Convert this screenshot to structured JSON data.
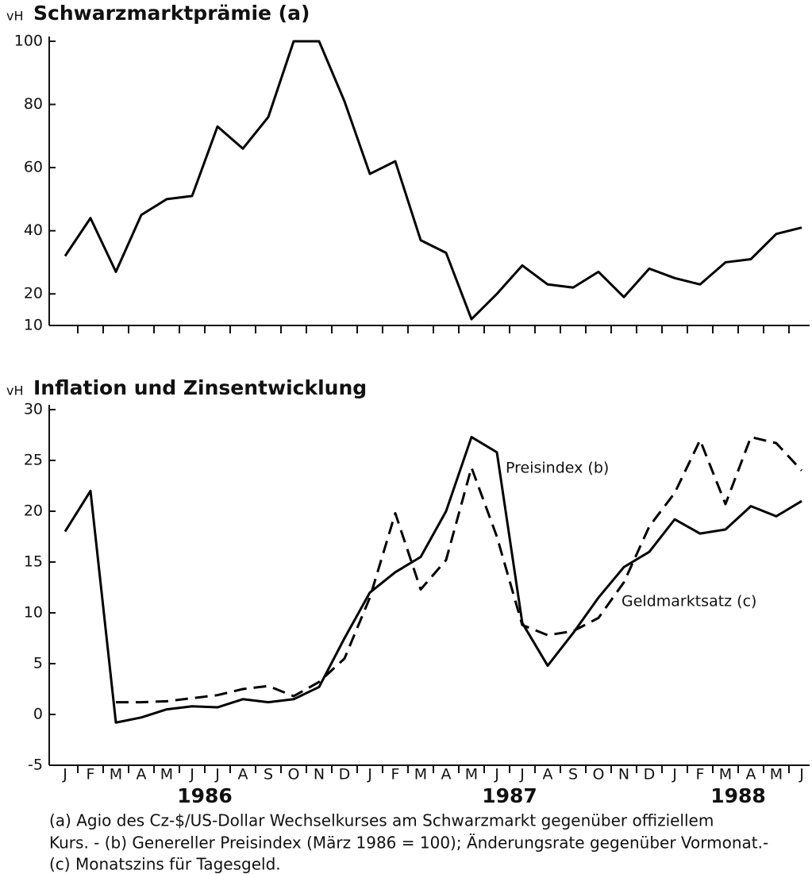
{
  "chart_data": [
    {
      "type": "line",
      "title": "Schwarzmarktprämie (a)",
      "y_label": "vH",
      "color": "#000000",
      "ylim": [
        10,
        100
      ],
      "yticks": [
        10,
        20,
        40,
        60,
        80,
        100
      ],
      "values": [
        32,
        44,
        27,
        45,
        50,
        51,
        73,
        66,
        76,
        100,
        100,
        81,
        58,
        62,
        37,
        33,
        12,
        20,
        29,
        23,
        22,
        27,
        19,
        28,
        25,
        23,
        30,
        31,
        39,
        41
      ]
    },
    {
      "type": "line",
      "title": "Inflation und Zinsentwicklung",
      "y_label": "vH",
      "ylim": [
        -5,
        30
      ],
      "yticks": [
        -5,
        0,
        5,
        10,
        15,
        20,
        25,
        30
      ],
      "categories": [
        "J",
        "F",
        "M",
        "A",
        "M",
        "J",
        "J",
        "A",
        "S",
        "O",
        "N",
        "D",
        "J",
        "F",
        "M",
        "A",
        "M",
        "J",
        "J",
        "A",
        "S",
        "O",
        "N",
        "D",
        "J",
        "F",
        "M",
        "A",
        "M",
        "J"
      ],
      "years": [
        "1986",
        "1987",
        "1988"
      ],
      "series": [
        {
          "name": "Preisindex (b)",
          "color": "#000000",
          "dash": false,
          "values": [
            18,
            22,
            -0.8,
            -0.3,
            0.5,
            0.8,
            0.7,
            1.5,
            1.2,
            1.5,
            2.7,
            7.5,
            12,
            14,
            15.5,
            20,
            27.3,
            25.8,
            9,
            4.8,
            8,
            11.5,
            14.5,
            16,
            19.2,
            17.8,
            18.2,
            20.5,
            19.5,
            21
          ]
        },
        {
          "name": "Geldmarktsatz (c)",
          "color": "#000000",
          "dash": true,
          "values": [
            null,
            null,
            1.2,
            1.2,
            1.3,
            1.6,
            1.9,
            2.5,
            2.8,
            1.8,
            3.2,
            5.5,
            11.5,
            19.8,
            12.3,
            15.2,
            24.3,
            17.5,
            8.8,
            7.8,
            8.2,
            9.5,
            13,
            18.5,
            21.8,
            27,
            20.7,
            27.3,
            26.7,
            24
          ]
        }
      ]
    }
  ],
  "footnote": [
    "(a) Agio des Cz-$/US-Dollar Wechselkurses am Schwarzmarkt gegenüber offiziellem",
    "Kurs. - (b) Genereller Preisindex (März 1986 = 100); Änderungsrate gegenüber Vormonat.-",
    "(c) Monatszins für Tagesgeld."
  ]
}
